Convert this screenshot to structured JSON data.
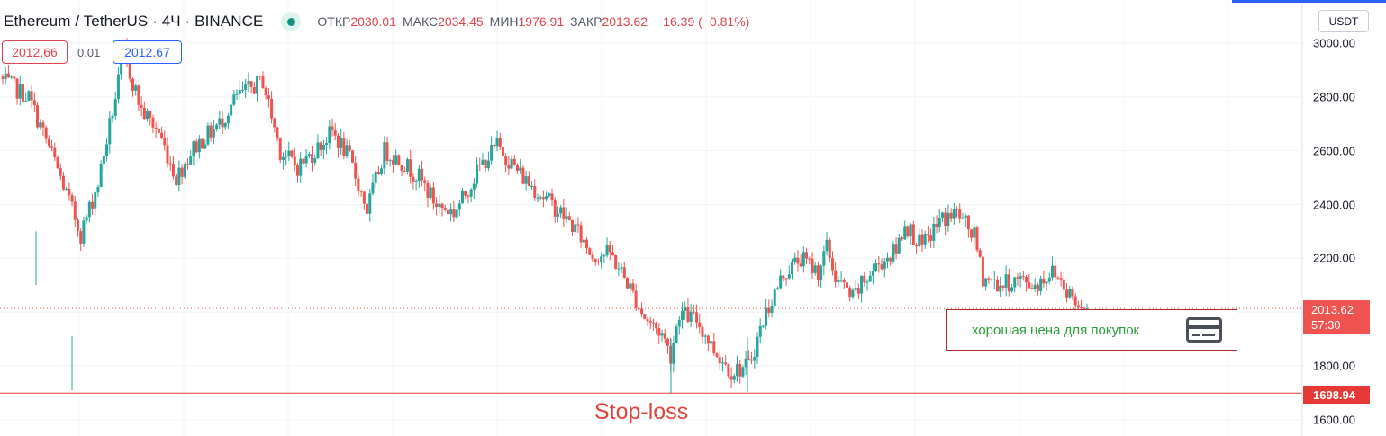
{
  "header": {
    "symbol_title": "Ethereum / TetherUS · 4Ч · BINANCE",
    "ohlc": {
      "open_label": "ОТКР",
      "open_value": "2030.01",
      "high_label": "МАКС",
      "high_value": "2034.45",
      "low_label": "МИН",
      "low_value": "1976.91",
      "close_label": "ЗАКР",
      "close_value": "2013.62",
      "change": "−16.39 (−0.81%)"
    },
    "status_color": "#12937f"
  },
  "trade": {
    "sell_price": "2012.66",
    "spread": "0.01",
    "buy_price": "2012.67"
  },
  "currency_button": "USDT",
  "y_axis": {
    "ticks": [
      {
        "value": 3000,
        "label": "3000.00"
      },
      {
        "value": 2800,
        "label": "2800.00"
      },
      {
        "value": 2600,
        "label": "2600.00"
      },
      {
        "value": 2400,
        "label": "2400.00"
      },
      {
        "value": 2200,
        "label": "2200.00"
      },
      {
        "value": 1800,
        "label": "1800.00"
      },
      {
        "value": 1600,
        "label": "1600.00"
      }
    ],
    "last_price_label": "2013.62",
    "countdown": "57:30",
    "stop_label": "1698.94"
  },
  "annotations": {
    "stop_loss_text": "Stop-loss",
    "note_text": "хорошая цена для покупок",
    "note_icon": "credit-card-icon"
  },
  "colors": {
    "up": "#26a69a",
    "down": "#ef5350",
    "stop_line": "#e53935",
    "note_text": "#2e9c3a"
  },
  "chart_data": {
    "type": "candlestick",
    "ylim": [
      1580,
      3050
    ],
    "grid": true,
    "last_price": 2013.62,
    "stop_loss": 1698.94,
    "close_path": [
      [
        0,
        2860
      ],
      [
        3,
        2800
      ],
      [
        6,
        2560
      ],
      [
        9,
        2290
      ],
      [
        11,
        2480
      ],
      [
        14,
        2960
      ],
      [
        16,
        2750
      ],
      [
        18,
        2670
      ],
      [
        20,
        2500
      ],
      [
        22,
        2610
      ],
      [
        25,
        2700
      ],
      [
        27,
        2800
      ],
      [
        30,
        2860
      ],
      [
        32,
        2600
      ],
      [
        34,
        2540
      ],
      [
        36,
        2600
      ],
      [
        38,
        2670
      ],
      [
        40,
        2570
      ],
      [
        42,
        2380
      ],
      [
        44,
        2600
      ],
      [
        46,
        2560
      ],
      [
        48,
        2500
      ],
      [
        50,
        2400
      ],
      [
        52,
        2370
      ],
      [
        53,
        2420
      ],
      [
        55,
        2540
      ],
      [
        57,
        2620
      ],
      [
        58,
        2580
      ],
      [
        60,
        2500
      ],
      [
        62,
        2440
      ],
      [
        64,
        2380
      ],
      [
        66,
        2310
      ],
      [
        68,
        2210
      ],
      [
        70,
        2220
      ],
      [
        72,
        2110
      ],
      [
        74,
        1980
      ],
      [
        76,
        1920
      ],
      [
        77,
        1840
      ],
      [
        78,
        2000
      ],
      [
        80,
        1970
      ],
      [
        82,
        1860
      ],
      [
        84,
        1780
      ],
      [
        86,
        1800
      ],
      [
        88,
        2000
      ],
      [
        90,
        2140
      ],
      [
        92,
        2200
      ],
      [
        94,
        2150
      ],
      [
        95,
        2240
      ],
      [
        96,
        2130
      ],
      [
        98,
        2050
      ],
      [
        99,
        2100
      ],
      [
        101,
        2180
      ],
      [
        103,
        2230
      ],
      [
        104,
        2330
      ],
      [
        106,
        2240
      ],
      [
        108,
        2340
      ],
      [
        110,
        2370
      ],
      [
        112,
        2280
      ],
      [
        113,
        2130
      ],
      [
        115,
        2100
      ],
      [
        117,
        2120
      ],
      [
        119,
        2100
      ],
      [
        121,
        2150
      ],
      [
        122,
        2120
      ],
      [
        124,
        2020
      ],
      [
        125,
        2013.62
      ]
    ]
  }
}
